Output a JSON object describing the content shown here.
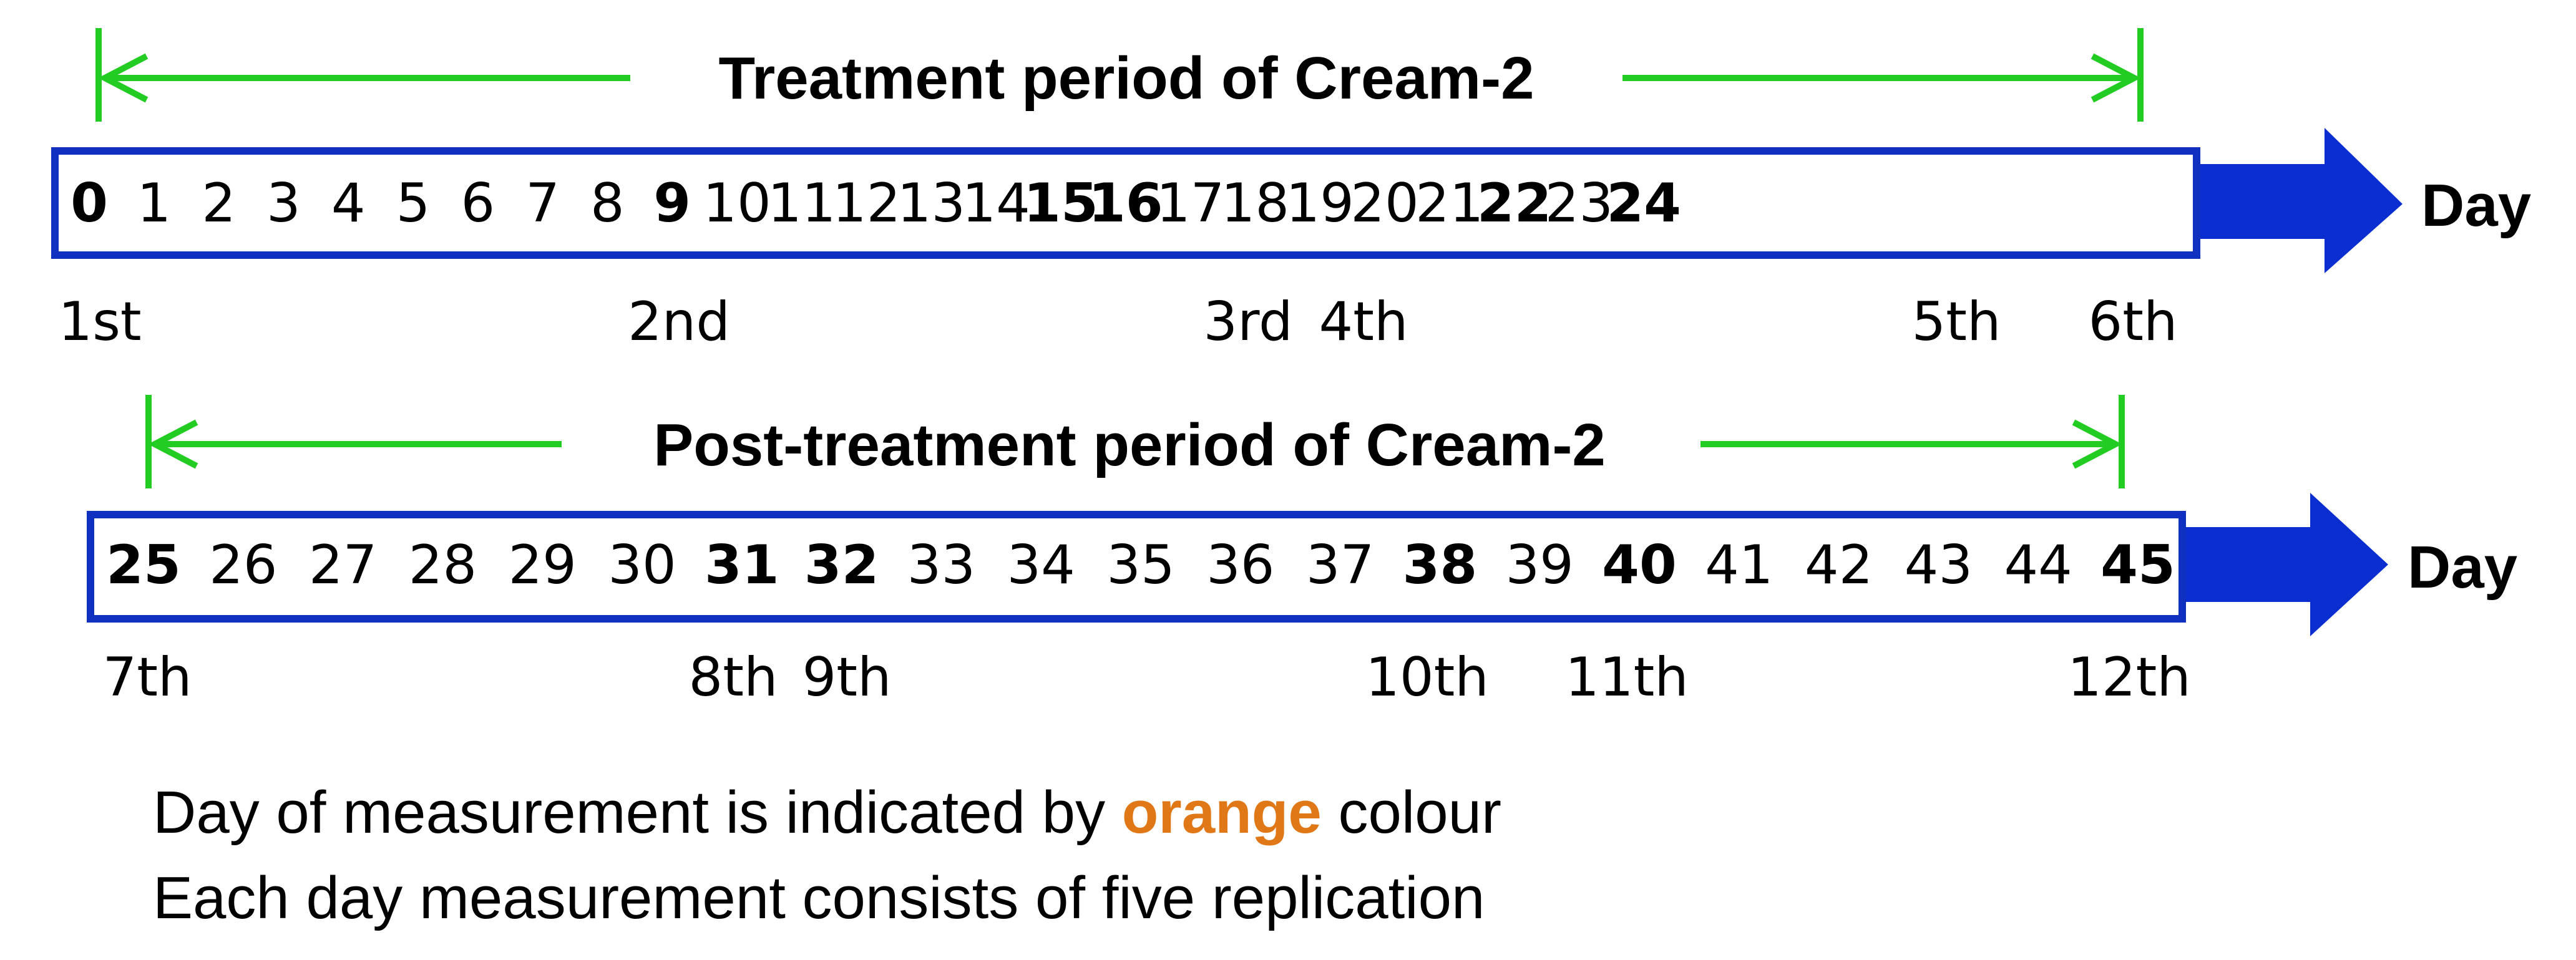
{
  "colors": {
    "measured": "#E07818",
    "normal": "#000000",
    "timeline_border": "#1030C0",
    "arrow": "#0A2ED0",
    "period_bracket": "#22CC22"
  },
  "timelines": [
    {
      "period_label": "Treatment period of Cream-2",
      "axis_label": "Day",
      "days": [
        {
          "label": "0",
          "measured": true
        },
        {
          "label": "1",
          "measured": false
        },
        {
          "label": "2",
          "measured": false
        },
        {
          "label": "3",
          "measured": false
        },
        {
          "label": "4",
          "measured": false
        },
        {
          "label": "5",
          "measured": false
        },
        {
          "label": "6",
          "measured": false
        },
        {
          "label": "7",
          "measured": false
        },
        {
          "label": "8",
          "measured": false
        },
        {
          "label": "9",
          "measured": true
        },
        {
          "label": "10",
          "measured": false
        },
        {
          "label": "11",
          "measured": false
        },
        {
          "label": "12",
          "measured": false
        },
        {
          "label": "13",
          "measured": false
        },
        {
          "label": "14",
          "measured": false
        },
        {
          "label": "15",
          "measured": true
        },
        {
          "label": "16",
          "measured": true
        },
        {
          "label": "17",
          "measured": false
        },
        {
          "label": "18",
          "measured": false
        },
        {
          "label": "19",
          "measured": false
        },
        {
          "label": "20",
          "measured": false
        },
        {
          "label": "21",
          "measured": false
        },
        {
          "label": "22",
          "measured": true
        },
        {
          "label": "23",
          "measured": false
        },
        {
          "label": "24",
          "measured": true
        }
      ],
      "measurements": [
        {
          "label": "1st",
          "day": "0"
        },
        {
          "label": "2nd",
          "day": "9"
        },
        {
          "label": "3rd",
          "day": "15"
        },
        {
          "label": "4th",
          "day": "16"
        },
        {
          "label": "5th",
          "day": "22"
        },
        {
          "label": "6th",
          "day": "24"
        }
      ]
    },
    {
      "period_label": "Post-treatment period of Cream-2",
      "axis_label": "Day",
      "days": [
        {
          "label": "25",
          "measured": true
        },
        {
          "label": "26",
          "measured": false
        },
        {
          "label": "27",
          "measured": false
        },
        {
          "label": "28",
          "measured": false
        },
        {
          "label": "29",
          "measured": false
        },
        {
          "label": "30",
          "measured": false
        },
        {
          "label": "31",
          "measured": true
        },
        {
          "label": "32",
          "measured": true
        },
        {
          "label": "33",
          "measured": false
        },
        {
          "label": "34",
          "measured": false
        },
        {
          "label": "35",
          "measured": false
        },
        {
          "label": "36",
          "measured": false
        },
        {
          "label": "37",
          "measured": false
        },
        {
          "label": "38",
          "measured": true
        },
        {
          "label": "39",
          "measured": false
        },
        {
          "label": "40",
          "measured": true
        },
        {
          "label": "41",
          "measured": false
        },
        {
          "label": "42",
          "measured": false
        },
        {
          "label": "43",
          "measured": false
        },
        {
          "label": "44",
          "measured": false
        },
        {
          "label": "45",
          "measured": true
        }
      ],
      "measurements": [
        {
          "label": "7th",
          "day": "25"
        },
        {
          "label": "8th",
          "day": "31"
        },
        {
          "label": "9th",
          "day": "32"
        },
        {
          "label": "10th",
          "day": "38"
        },
        {
          "label": "11th",
          "day": "40"
        },
        {
          "label": "12th",
          "day": "45"
        }
      ]
    }
  ],
  "notes": {
    "line1_prefix": "Day of measurement is indicated by ",
    "line1_highlight": "orange",
    "line1_suffix": " colour",
    "line2": "Each day measurement consists of five replication"
  }
}
